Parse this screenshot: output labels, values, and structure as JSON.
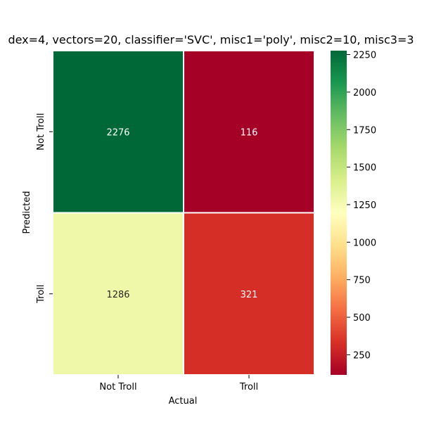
{
  "chart_data": {
    "type": "heatmap",
    "title": "dex=4, vectors=20, classifier='SVC', misc1='poly', misc2=10, misc3=3",
    "xlabel": "Actual",
    "ylabel": "Predicted",
    "x_categories": [
      "Not Troll",
      "Troll"
    ],
    "y_categories": [
      "Not Troll",
      "Troll"
    ],
    "values": [
      [
        2276,
        116
      ],
      [
        1286,
        321
      ]
    ],
    "colormap": "RdYlGn",
    "color_range": [
      116,
      2276
    ],
    "colorbar_ticks": [
      250,
      500,
      750,
      1000,
      1250,
      1500,
      1750,
      2000,
      2250
    ],
    "colors": {
      "low": "#a50026",
      "mid": "#ffffbf",
      "high": "#006837"
    }
  }
}
